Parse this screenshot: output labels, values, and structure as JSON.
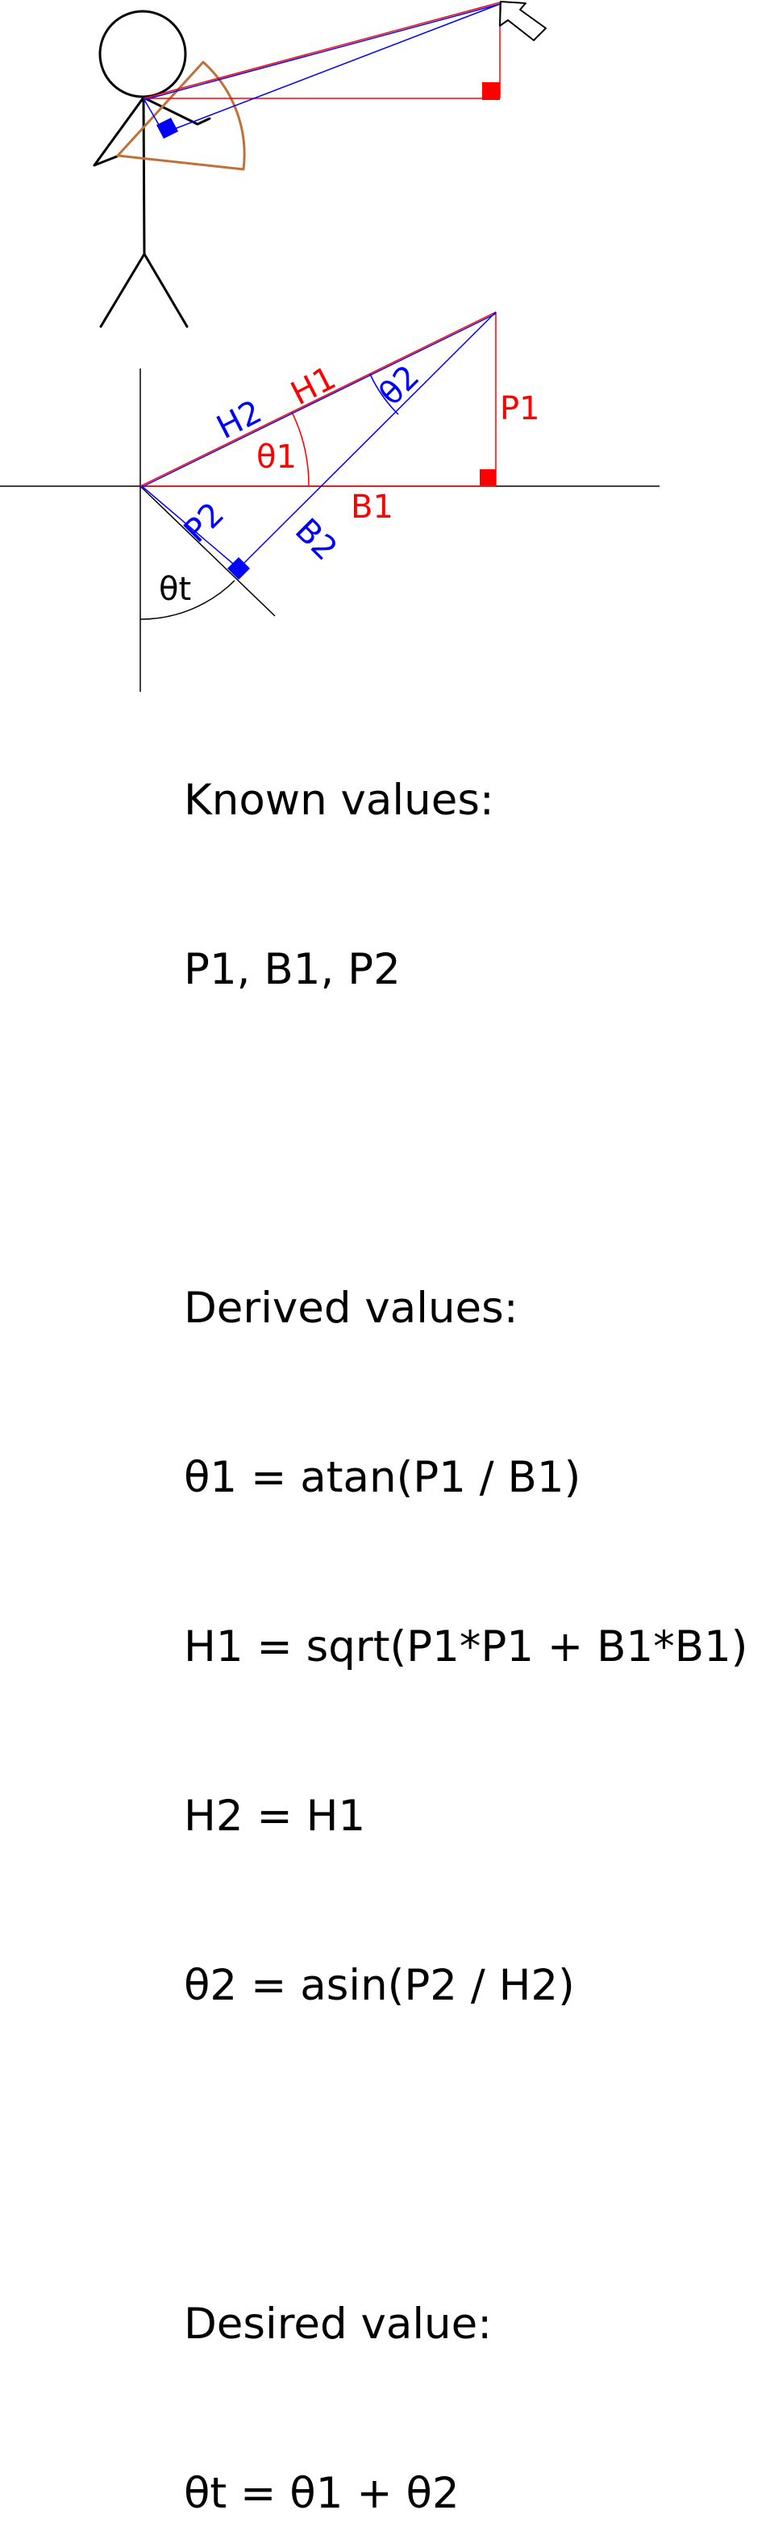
{
  "colors": {
    "red": "#ff0000",
    "blue": "#0000ff",
    "black": "#000000",
    "arc_brown": "#c0703a"
  },
  "icons": {
    "pointer": "mouse-cursor-arrow-icon",
    "figure": "stick-figure"
  },
  "labels": {
    "H1": "H1",
    "H2": "H2",
    "P1": "P1",
    "B1": "B1",
    "P2": "P2",
    "B2": "B2",
    "theta1": "θ1",
    "theta2": "θ2",
    "thetat": "θt"
  },
  "notes": {
    "known_heading": "Known values:",
    "known_list": "P1, B1, P2",
    "derived_heading": "Derived values:",
    "derived": [
      "θ1 = atan(P1 / B1)",
      "H1 = sqrt(P1*P1 + B1*B1)",
      "H2 = H1",
      "θ2 = asin(P2 / H2)"
    ],
    "desired_heading": "Desired value:",
    "desired": "θt = θ1 + θ2"
  }
}
